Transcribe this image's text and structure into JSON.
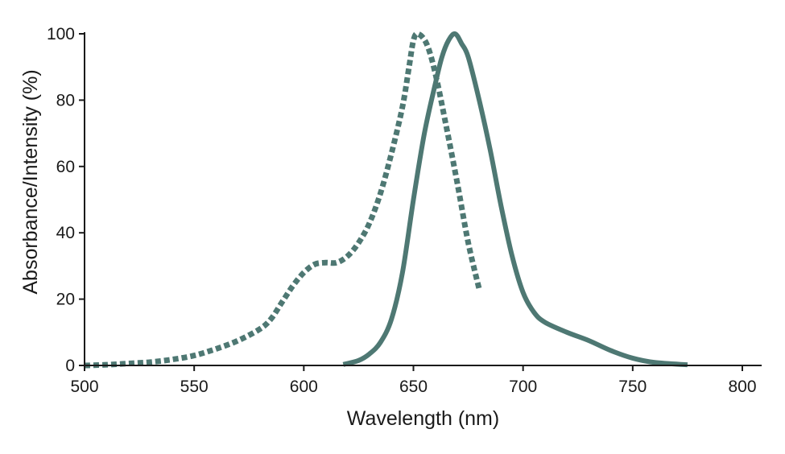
{
  "chart_data": {
    "type": "line",
    "title": "",
    "xlabel": "Wavelength (nm)",
    "ylabel": "Absorbance/Intensity (%)",
    "xlim": [
      500,
      800
    ],
    "ylim": [
      0,
      100
    ],
    "xticks": [
      500,
      550,
      600,
      650,
      700,
      750,
      800
    ],
    "yticks": [
      0,
      20,
      40,
      60,
      80,
      100
    ],
    "grid": false,
    "legend": "none",
    "series": [
      {
        "style": "dotted",
        "color": "#4e7873",
        "points": [
          [
            500,
            0
          ],
          [
            510,
            0.2
          ],
          [
            520,
            0.6
          ],
          [
            530,
            1.0
          ],
          [
            540,
            1.8
          ],
          [
            550,
            3.0
          ],
          [
            560,
            5.0
          ],
          [
            570,
            7.5
          ],
          [
            580,
            11.0
          ],
          [
            585,
            14.0
          ],
          [
            590,
            19.0
          ],
          [
            595,
            24.0
          ],
          [
            600,
            28.0
          ],
          [
            605,
            30.5
          ],
          [
            610,
            31.0
          ],
          [
            615,
            31.0
          ],
          [
            620,
            33.0
          ],
          [
            625,
            37.0
          ],
          [
            630,
            43.0
          ],
          [
            635,
            52.0
          ],
          [
            640,
            64.0
          ],
          [
            645,
            78.0
          ],
          [
            648,
            90.0
          ],
          [
            650,
            98.0
          ],
          [
            652,
            100.0
          ],
          [
            656,
            97.0
          ],
          [
            660,
            88.0
          ],
          [
            665,
            72.0
          ],
          [
            670,
            55.0
          ],
          [
            675,
            37.0
          ],
          [
            680,
            23.0
          ]
        ]
      },
      {
        "style": "solid",
        "color": "#4e7873",
        "points": [
          [
            618,
            0.3
          ],
          [
            625,
            1.5
          ],
          [
            630,
            3.5
          ],
          [
            635,
            7.0
          ],
          [
            640,
            14.0
          ],
          [
            645,
            28.0
          ],
          [
            650,
            50.0
          ],
          [
            655,
            70.0
          ],
          [
            660,
            85.0
          ],
          [
            663,
            93.0
          ],
          [
            666,
            98.0
          ],
          [
            669,
            100.0
          ],
          [
            672,
            97.0
          ],
          [
            675,
            93.0
          ],
          [
            680,
            80.0
          ],
          [
            685,
            65.0
          ],
          [
            690,
            48.0
          ],
          [
            695,
            33.0
          ],
          [
            700,
            22.0
          ],
          [
            705,
            16.0
          ],
          [
            710,
            13.0
          ],
          [
            720,
            10.0
          ],
          [
            730,
            7.5
          ],
          [
            740,
            4.5
          ],
          [
            750,
            2.2
          ],
          [
            760,
            0.9
          ],
          [
            775,
            0.2
          ]
        ]
      }
    ]
  }
}
